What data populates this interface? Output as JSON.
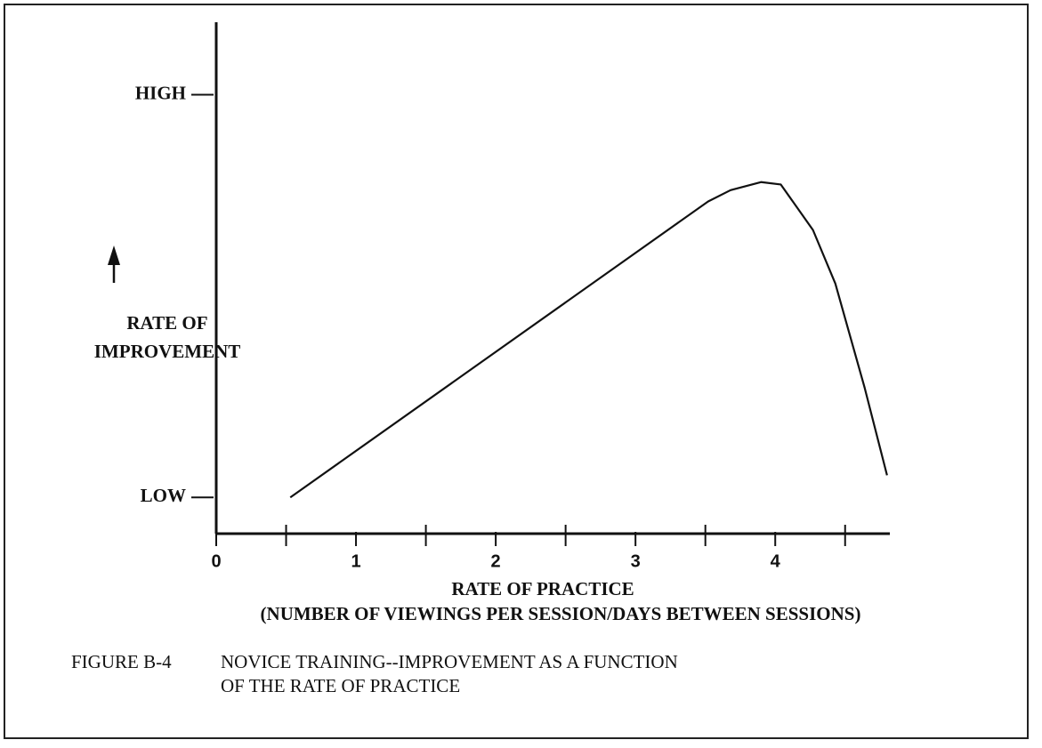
{
  "chart_data": {
    "type": "line",
    "x": [
      0.53,
      3.52,
      3.68,
      3.9,
      4.04,
      4.27,
      4.43,
      4.64,
      4.8
    ],
    "values": [
      0,
      7.35,
      7.63,
      7.83,
      7.77,
      6.64,
      5.31,
      2.72,
      0.55
    ],
    "color": "#111111",
    "xlim": [
      0,
      4.82
    ],
    "ylim": [
      -0.9,
      11.8
    ],
    "xticks": [
      0,
      1,
      2,
      3,
      4
    ],
    "xminor_ticks": [
      0.5,
      1.5,
      2.5,
      3.5,
      4.5
    ],
    "yticks": [
      {
        "value": 0,
        "label": "LOW"
      },
      {
        "value": 10,
        "label": "HIGH"
      }
    ],
    "y_label": [
      "RATE OF",
      "IMPROVEMENT"
    ],
    "x_label": [
      "RATE OF PRACTICE",
      "(NUMBER OF VIEWINGS PER SESSION/DAYS BETWEEN SESSIONS)"
    ],
    "caption_number": "FIGURE B-4",
    "caption": [
      "NOVICE TRAINING--IMPROVEMENT AS A FUNCTION",
      "OF THE RATE OF PRACTICE"
    ]
  }
}
